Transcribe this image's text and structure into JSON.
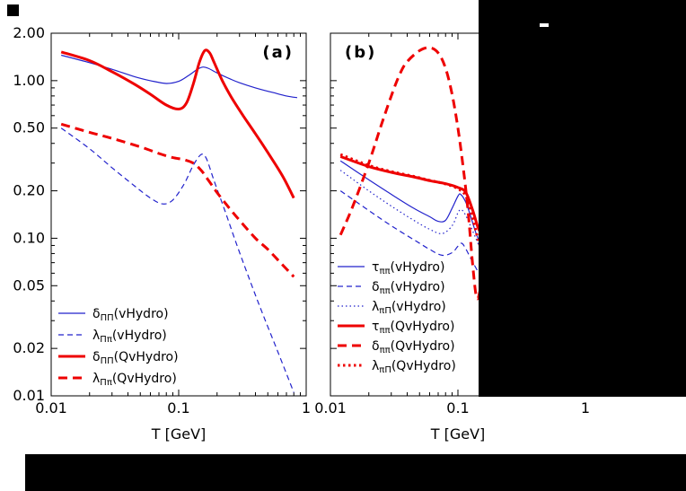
{
  "figure": {
    "background": "#ffffff"
  },
  "colors": {
    "vhydro_blue": "#2222cc",
    "qvhydro_red": "#ee0000",
    "axis": "#000000"
  },
  "chart_data": [
    {
      "type": "line",
      "panel": "a",
      "tag": "(a)",
      "xlabel": "T [GeV]",
      "xscale": "log",
      "yscale": "log",
      "xlim": [
        0.01,
        1
      ],
      "ylim": [
        0.01,
        2
      ],
      "grid": false,
      "legend_position": "bottom-left",
      "x_ticks": [
        {
          "v": 0.01,
          "label": "0.01"
        },
        {
          "v": 0.1,
          "label": "0.1"
        },
        {
          "v": 1,
          "label": "1"
        }
      ],
      "y_ticks": [
        {
          "v": 2,
          "label": "2.00"
        },
        {
          "v": 1,
          "label": "1.00"
        },
        {
          "v": 0.5,
          "label": "0.50"
        },
        {
          "v": 0.2,
          "label": "0.20"
        },
        {
          "v": 0.1,
          "label": "0.10"
        },
        {
          "v": 0.05,
          "label": "0.05"
        },
        {
          "v": 0.02,
          "label": "0.02"
        },
        {
          "v": 0.01,
          "label": "0.01"
        }
      ],
      "series": [
        {
          "name": "delta_PiPi_vHydro",
          "label": "δ_ΠΠ(vHydro)",
          "label_sym": "δ",
          "label_sub": "ΠΠ",
          "label_rest": "(vHydro)",
          "color": "#2222cc",
          "width": 1.2,
          "dash": "solid",
          "points": [
            [
              0.012,
              1.45
            ],
            [
              0.02,
              1.3
            ],
            [
              0.03,
              1.18
            ],
            [
              0.045,
              1.06
            ],
            [
              0.06,
              1.0
            ],
            [
              0.08,
              0.96
            ],
            [
              0.1,
              0.99
            ],
            [
              0.12,
              1.08
            ],
            [
              0.14,
              1.18
            ],
            [
              0.155,
              1.22
            ],
            [
              0.17,
              1.2
            ],
            [
              0.2,
              1.12
            ],
            [
              0.25,
              1.03
            ],
            [
              0.3,
              0.97
            ],
            [
              0.4,
              0.9
            ],
            [
              0.55,
              0.84
            ],
            [
              0.7,
              0.8
            ],
            [
              0.85,
              0.78
            ]
          ]
        },
        {
          "name": "lambda_Pipi_vHydro",
          "label": "λ_Ππ(vHydro)",
          "label_sym": "λ",
          "label_sub": "Ππ",
          "label_rest": "(vHydro)",
          "color": "#2222cc",
          "width": 1.2,
          "dash": "dashed",
          "points": [
            [
              0.012,
              0.5
            ],
            [
              0.02,
              0.37
            ],
            [
              0.03,
              0.28
            ],
            [
              0.045,
              0.215
            ],
            [
              0.06,
              0.18
            ],
            [
              0.075,
              0.165
            ],
            [
              0.09,
              0.175
            ],
            [
              0.11,
              0.22
            ],
            [
              0.13,
              0.29
            ],
            [
              0.15,
              0.34
            ],
            [
              0.165,
              0.32
            ],
            [
              0.19,
              0.23
            ],
            [
              0.23,
              0.15
            ],
            [
              0.28,
              0.095
            ],
            [
              0.35,
              0.058
            ],
            [
              0.45,
              0.034
            ],
            [
              0.6,
              0.019
            ],
            [
              0.8,
              0.0105
            ]
          ]
        },
        {
          "name": "delta_PiPi_QvHydro",
          "label": "δ_ΠΠ(QvHydro)",
          "label_sym": "δ",
          "label_sub": "ΠΠ",
          "label_rest": "(QvHydro)",
          "color": "#ee0000",
          "width": 3,
          "dash": "solid",
          "points": [
            [
              0.012,
              1.52
            ],
            [
              0.02,
              1.34
            ],
            [
              0.03,
              1.14
            ],
            [
              0.045,
              0.95
            ],
            [
              0.06,
              0.82
            ],
            [
              0.08,
              0.7
            ],
            [
              0.1,
              0.66
            ],
            [
              0.115,
              0.72
            ],
            [
              0.13,
              0.95
            ],
            [
              0.145,
              1.3
            ],
            [
              0.16,
              1.55
            ],
            [
              0.175,
              1.5
            ],
            [
              0.19,
              1.3
            ],
            [
              0.22,
              1.0
            ],
            [
              0.26,
              0.78
            ],
            [
              0.32,
              0.6
            ],
            [
              0.4,
              0.46
            ],
            [
              0.5,
              0.35
            ],
            [
              0.65,
              0.25
            ],
            [
              0.8,
              0.18
            ]
          ]
        },
        {
          "name": "lambda_Pipi_QvHydro",
          "label": "λ_Ππ(QvHydro)",
          "label_sym": "λ",
          "label_sub": "Ππ",
          "label_rest": "(QvHydro)",
          "color": "#ee0000",
          "width": 3,
          "dash": "dashed",
          "points": [
            [
              0.012,
              0.53
            ],
            [
              0.02,
              0.47
            ],
            [
              0.03,
              0.43
            ],
            [
              0.05,
              0.38
            ],
            [
              0.07,
              0.345
            ],
            [
              0.09,
              0.325
            ],
            [
              0.11,
              0.315
            ],
            [
              0.13,
              0.3
            ],
            [
              0.15,
              0.27
            ],
            [
              0.17,
              0.235
            ],
            [
              0.2,
              0.195
            ],
            [
              0.25,
              0.155
            ],
            [
              0.3,
              0.13
            ],
            [
              0.4,
              0.1
            ],
            [
              0.5,
              0.085
            ],
            [
              0.65,
              0.068
            ],
            [
              0.8,
              0.057
            ]
          ]
        }
      ]
    },
    {
      "type": "line",
      "panel": "b",
      "tag": "(b)",
      "xlabel": "T [GeV]",
      "xscale": "log",
      "yscale": "log",
      "xlim": [
        0.01,
        1
      ],
      "ylim": [
        0.01,
        2
      ],
      "grid": false,
      "legend_position": "bottom-left",
      "x_ticks": [
        {
          "v": 0.01,
          "label": "0.01"
        },
        {
          "v": 0.1,
          "label": "0.1"
        },
        {
          "v": 1,
          "label": "1"
        }
      ],
      "y_ticks": [
        {
          "v": 2
        },
        {
          "v": 1
        },
        {
          "v": 0.5
        },
        {
          "v": 0.2
        },
        {
          "v": 0.1
        },
        {
          "v": 0.05
        },
        {
          "v": 0.02
        },
        {
          "v": 0.01
        }
      ],
      "series": [
        {
          "name": "tau_pipi_vHydro",
          "label": "τ_ππ(vHydro)",
          "label_sym": "τ",
          "label_sub": "ππ",
          "label_rest": "(vHydro)",
          "color": "#2222cc",
          "width": 1.2,
          "dash": "solid",
          "points": [
            [
              0.012,
              0.31
            ],
            [
              0.02,
              0.235
            ],
            [
              0.03,
              0.19
            ],
            [
              0.045,
              0.155
            ],
            [
              0.06,
              0.137
            ],
            [
              0.07,
              0.128
            ],
            [
              0.08,
              0.13
            ],
            [
              0.09,
              0.155
            ],
            [
              0.1,
              0.185
            ],
            [
              0.105,
              0.19
            ],
            [
              0.115,
              0.17
            ],
            [
              0.125,
              0.14
            ],
            [
              0.14,
              0.105
            ],
            [
              0.155,
              0.088
            ],
            [
              0.17,
              0.078
            ]
          ]
        },
        {
          "name": "delta_pipi_vHydro",
          "label": "δ_ππ(vHydro)",
          "label_sym": "δ",
          "label_sub": "ππ",
          "label_rest": "(vHydro)",
          "color": "#2222cc",
          "width": 1.2,
          "dash": "dashed",
          "points": [
            [
              0.012,
              0.2
            ],
            [
              0.02,
              0.15
            ],
            [
              0.03,
              0.12
            ],
            [
              0.045,
              0.098
            ],
            [
              0.06,
              0.085
            ],
            [
              0.075,
              0.078
            ],
            [
              0.09,
              0.081
            ],
            [
              0.1,
              0.089
            ],
            [
              0.107,
              0.093
            ],
            [
              0.115,
              0.086
            ],
            [
              0.13,
              0.071
            ],
            [
              0.15,
              0.058
            ],
            [
              0.17,
              0.05
            ]
          ]
        },
        {
          "name": "lambda_piPi_vHydro",
          "label": "λ_πΠ(vHydro)",
          "label_sym": "λ",
          "label_sub": "πΠ",
          "label_rest": "(vHydro)",
          "color": "#2222cc",
          "width": 1.2,
          "dash": "dotted",
          "points": [
            [
              0.012,
              0.27
            ],
            [
              0.02,
              0.2
            ],
            [
              0.03,
              0.16
            ],
            [
              0.045,
              0.13
            ],
            [
              0.06,
              0.114
            ],
            [
              0.075,
              0.107
            ],
            [
              0.09,
              0.12
            ],
            [
              0.1,
              0.145
            ],
            [
              0.106,
              0.152
            ],
            [
              0.115,
              0.14
            ],
            [
              0.13,
              0.112
            ],
            [
              0.15,
              0.086
            ],
            [
              0.17,
              0.072
            ]
          ]
        },
        {
          "name": "tau_pipi_QvHydro",
          "label": "τ_ππ(QvHydro)",
          "label_sym": "τ",
          "label_sub": "ππ",
          "label_rest": "(QvHydro)",
          "color": "#ee0000",
          "width": 3,
          "dash": "solid",
          "points": [
            [
              0.012,
              0.33
            ],
            [
              0.02,
              0.285
            ],
            [
              0.03,
              0.262
            ],
            [
              0.045,
              0.245
            ],
            [
              0.06,
              0.232
            ],
            [
              0.08,
              0.222
            ],
            [
              0.1,
              0.21
            ],
            [
              0.115,
              0.196
            ],
            [
              0.13,
              0.152
            ],
            [
              0.145,
              0.115
            ],
            [
              0.16,
              0.103
            ],
            [
              0.17,
              0.1
            ]
          ]
        },
        {
          "name": "delta_pipi_QvHydro",
          "label": "δ_ππ(QvHydro)",
          "label_sym": "δ",
          "label_sub": "ππ",
          "label_rest": "(QvHydro)",
          "color": "#ee0000",
          "width": 3,
          "dash": "dashed",
          "points": [
            [
              0.012,
              0.105
            ],
            [
              0.015,
              0.16
            ],
            [
              0.02,
              0.3
            ],
            [
              0.025,
              0.52
            ],
            [
              0.03,
              0.8
            ],
            [
              0.035,
              1.1
            ],
            [
              0.04,
              1.32
            ],
            [
              0.05,
              1.55
            ],
            [
              0.06,
              1.62
            ],
            [
              0.07,
              1.5
            ],
            [
              0.08,
              1.2
            ],
            [
              0.09,
              0.82
            ],
            [
              0.1,
              0.5
            ],
            [
              0.11,
              0.28
            ],
            [
              0.12,
              0.15
            ],
            [
              0.13,
              0.07
            ],
            [
              0.14,
              0.042
            ],
            [
              0.15,
              0.048
            ],
            [
              0.16,
              0.07
            ],
            [
              0.17,
              0.088
            ]
          ]
        },
        {
          "name": "lambda_piPi_QvHydro",
          "label": "λ_πΠ(QvHydro)",
          "label_sym": "λ",
          "label_sub": "πΠ",
          "label_rest": "(QvHydro)",
          "color": "#ee0000",
          "width": 3,
          "dash": "dotted",
          "points": [
            [
              0.012,
              0.34
            ],
            [
              0.02,
              0.29
            ],
            [
              0.03,
              0.265
            ],
            [
              0.045,
              0.247
            ],
            [
              0.06,
              0.233
            ],
            [
              0.08,
              0.221
            ],
            [
              0.1,
              0.206
            ],
            [
              0.115,
              0.186
            ],
            [
              0.13,
              0.136
            ],
            [
              0.145,
              0.096
            ],
            [
              0.16,
              0.078
            ],
            [
              0.17,
              0.074
            ]
          ]
        }
      ]
    }
  ]
}
